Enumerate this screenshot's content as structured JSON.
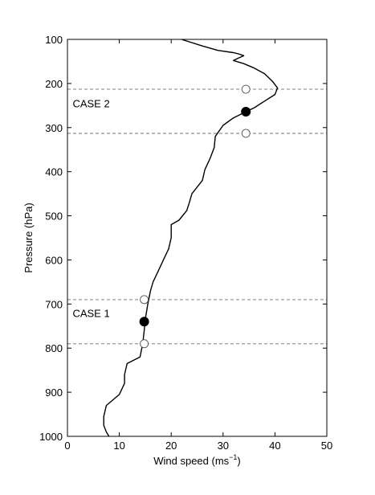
{
  "chart_data": {
    "type": "line",
    "title": "",
    "xlabel": "Wind speed (ms",
    "xlabel_superscript": "−1",
    "xlabel_suffix": ")",
    "ylabel": "Pressure (hPa)",
    "xlim": [
      0,
      50
    ],
    "ylim": [
      100,
      1000
    ],
    "y_inverted": true,
    "grid": false,
    "x_ticks": [
      0,
      10,
      20,
      30,
      40,
      50
    ],
    "y_ticks": [
      100,
      200,
      300,
      400,
      500,
      600,
      700,
      800,
      900,
      1000
    ],
    "profile": {
      "color": "#000000",
      "points": [
        [
          22,
          100
        ],
        [
          26,
          115
        ],
        [
          29,
          125
        ],
        [
          32,
          130
        ],
        [
          33,
          133
        ],
        [
          33.5,
          135
        ],
        [
          34,
          137
        ],
        [
          33,
          142
        ],
        [
          32,
          148
        ],
        [
          34,
          155
        ],
        [
          36,
          165
        ],
        [
          38,
          178
        ],
        [
          39.5,
          195
        ],
        [
          40.5,
          210
        ],
        [
          40,
          225
        ],
        [
          38,
          240
        ],
        [
          36,
          255
        ],
        [
          34.4,
          264
        ],
        [
          32,
          278
        ],
        [
          30,
          295
        ],
        [
          28.5,
          320
        ],
        [
          28.3,
          345
        ],
        [
          27.5,
          370
        ],
        [
          26.5,
          395
        ],
        [
          26,
          420
        ],
        [
          24,
          450
        ],
        [
          23.5,
          470
        ],
        [
          23,
          488
        ],
        [
          21.5,
          510
        ],
        [
          20,
          520
        ],
        [
          20,
          550
        ],
        [
          19.5,
          575
        ],
        [
          18.5,
          600
        ],
        [
          17.5,
          625
        ],
        [
          16.5,
          650
        ],
        [
          16,
          670
        ],
        [
          15.5,
          700
        ],
        [
          15,
          735
        ],
        [
          14.8,
          760
        ],
        [
          14.5,
          790
        ],
        [
          14,
          820
        ],
        [
          11.5,
          835
        ],
        [
          11,
          860
        ],
        [
          11,
          880
        ],
        [
          10,
          905
        ],
        [
          7.5,
          930
        ],
        [
          7,
          955
        ],
        [
          7,
          975
        ],
        [
          7.5,
          990
        ],
        [
          8,
          1000
        ]
      ]
    },
    "case_lines": [
      {
        "pressure": 213,
        "color": "#999999"
      },
      {
        "pressure": 313,
        "color": "#999999"
      },
      {
        "pressure": 690,
        "color": "#999999"
      },
      {
        "pressure": 790,
        "color": "#999999"
      }
    ],
    "markers": [
      {
        "x": 34.4,
        "y": 213,
        "filled": false
      },
      {
        "x": 34.4,
        "y": 264,
        "filled": true
      },
      {
        "x": 34.4,
        "y": 313,
        "filled": false
      },
      {
        "x": 14.8,
        "y": 690,
        "filled": false
      },
      {
        "x": 14.8,
        "y": 740,
        "filled": true
      },
      {
        "x": 14.8,
        "y": 790,
        "filled": false
      }
    ],
    "annotations": [
      {
        "text": "CASE 2",
        "x": 1,
        "y": 265
      },
      {
        "text": "CASE 1",
        "x": 1,
        "y": 740
      }
    ]
  }
}
